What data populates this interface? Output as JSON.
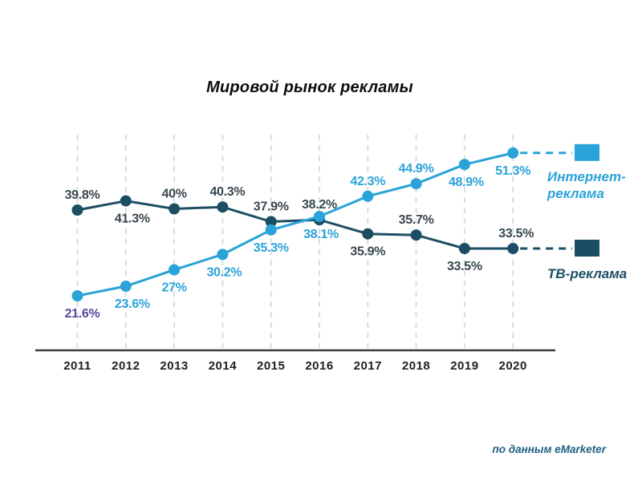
{
  "title": "Мировой рынок рекламы",
  "source_note": "по данным eMarketer",
  "legend": {
    "internet_label": "Интернет-\nреклама",
    "tv_label": "ТВ-реклама"
  },
  "colors": {
    "internet": "#2AA3D8",
    "tv": "#1B4E63",
    "tv_label_text": "#37474F",
    "internet_first_label": "#5B4A9E",
    "grid": "#D4DFE2",
    "axis": "#3D3D3D",
    "title_text": "#0D0D0D",
    "year_text": "#1F1F1F",
    "footer_text": "#1F5F82"
  },
  "chart_data": {
    "type": "line",
    "title": "Мировой рынок рекламы",
    "categories": [
      "2011",
      "2012",
      "2013",
      "2014",
      "2015",
      "2016",
      "2017",
      "2018",
      "2019",
      "2020"
    ],
    "unit": "%",
    "grid": "vertical-dashed",
    "legend_position": "right",
    "xlabel": "",
    "ylabel": "",
    "series": [
      {
        "name": "Интернет-реклама",
        "color": "#2AA3D8",
        "values": [
          21.6,
          23.6,
          27,
          30.2,
          35.3,
          38.1,
          42.3,
          44.9,
          48.9,
          51.3
        ],
        "labels": [
          "21.6%",
          "23.6%",
          "27%",
          "30.2%",
          "35.3%",
          "38.1%",
          "42.3%",
          "44.9%",
          "48.9%",
          "51.3%"
        ],
        "label_positions": [
          "below",
          "below",
          "below",
          "below",
          "below",
          "below",
          "above",
          "above",
          "below",
          "below"
        ],
        "label_colors": [
          "#5B4A9E",
          "#2AA3D8",
          "#2AA3D8",
          "#2AA3D8",
          "#2AA3D8",
          "#2AA3D8",
          "#2AA3D8",
          "#2AA3D8",
          "#2AA3D8",
          "#2AA3D8"
        ]
      },
      {
        "name": "ТВ-реклама",
        "color": "#1B4E63",
        "values": [
          39.8,
          41.3,
          40.0,
          40.3,
          37.9,
          38.2,
          35.9,
          35.7,
          33.5,
          33.5
        ],
        "labels": [
          "39.8%",
          "41.3%",
          "40%",
          "40.3%",
          "37.9%",
          "38.2%",
          "35.9%",
          "35.7%",
          "33.5%",
          "33.5%"
        ],
        "label_positions": [
          "above",
          "below",
          "above",
          "above",
          "above",
          "above",
          "below",
          "above",
          "below",
          "above"
        ],
        "label_colors": [
          "#37474F",
          "#37474F",
          "#37474F",
          "#37474F",
          "#37474F",
          "#37474F",
          "#37474F",
          "#37474F",
          "#37474F",
          "#37474F"
        ]
      }
    ]
  }
}
